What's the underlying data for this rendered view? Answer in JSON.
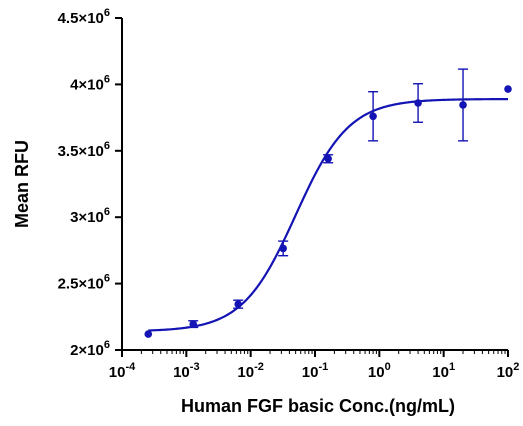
{
  "chart_data": {
    "type": "scatter",
    "title": "",
    "xlabel": "Human FGF basic Conc.(ng/mL)",
    "ylabel": "Mean RFU",
    "x_scale": "log",
    "xlim": [
      0.0001,
      100
    ],
    "ylim": [
      2000000,
      4500000
    ],
    "grid": false,
    "legend": "none",
    "colors": {
      "series": "#1414b4",
      "axis": "#000000"
    },
    "x_ticks": [
      {
        "mantissa": "10",
        "exp": "-4"
      },
      {
        "mantissa": "10",
        "exp": "-3"
      },
      {
        "mantissa": "10",
        "exp": "-2"
      },
      {
        "mantissa": "10",
        "exp": "-1"
      },
      {
        "mantissa": "10",
        "exp": "0"
      },
      {
        "mantissa": "10",
        "exp": "1"
      },
      {
        "mantissa": "10",
        "exp": "2"
      }
    ],
    "y_ticks": [
      {
        "mantissa": "2",
        "exp": "6"
      },
      {
        "mantissa": "2.5",
        "exp": "6"
      },
      {
        "mantissa": "3",
        "exp": "6"
      },
      {
        "mantissa": "3.5",
        "exp": "6"
      },
      {
        "mantissa": "4",
        "exp": "6"
      },
      {
        "mantissa": "4.5",
        "exp": "6"
      }
    ],
    "series": [
      {
        "points": [
          {
            "x": 0.000256,
            "y": 2120000,
            "err": 0
          },
          {
            "x": 0.00128,
            "y": 2195000,
            "err": 25000
          },
          {
            "x": 0.0064,
            "y": 2345000,
            "err": 30000
          },
          {
            "x": 0.032,
            "y": 2765000,
            "err": 55000
          },
          {
            "x": 0.16,
            "y": 3440000,
            "err": 30000
          },
          {
            "x": 0.8,
            "y": 3760000,
            "err": 185000
          },
          {
            "x": 4,
            "y": 3860000,
            "err": 145000
          },
          {
            "x": 20,
            "y": 3845000,
            "err": 270000
          },
          {
            "x": 100,
            "y": 3965000,
            "err": 0
          }
        ],
        "fit": {
          "model": "4PL",
          "bottom": 2140000,
          "top": 3890000,
          "ec50": 0.05,
          "hill": 1.05
        }
      }
    ]
  }
}
